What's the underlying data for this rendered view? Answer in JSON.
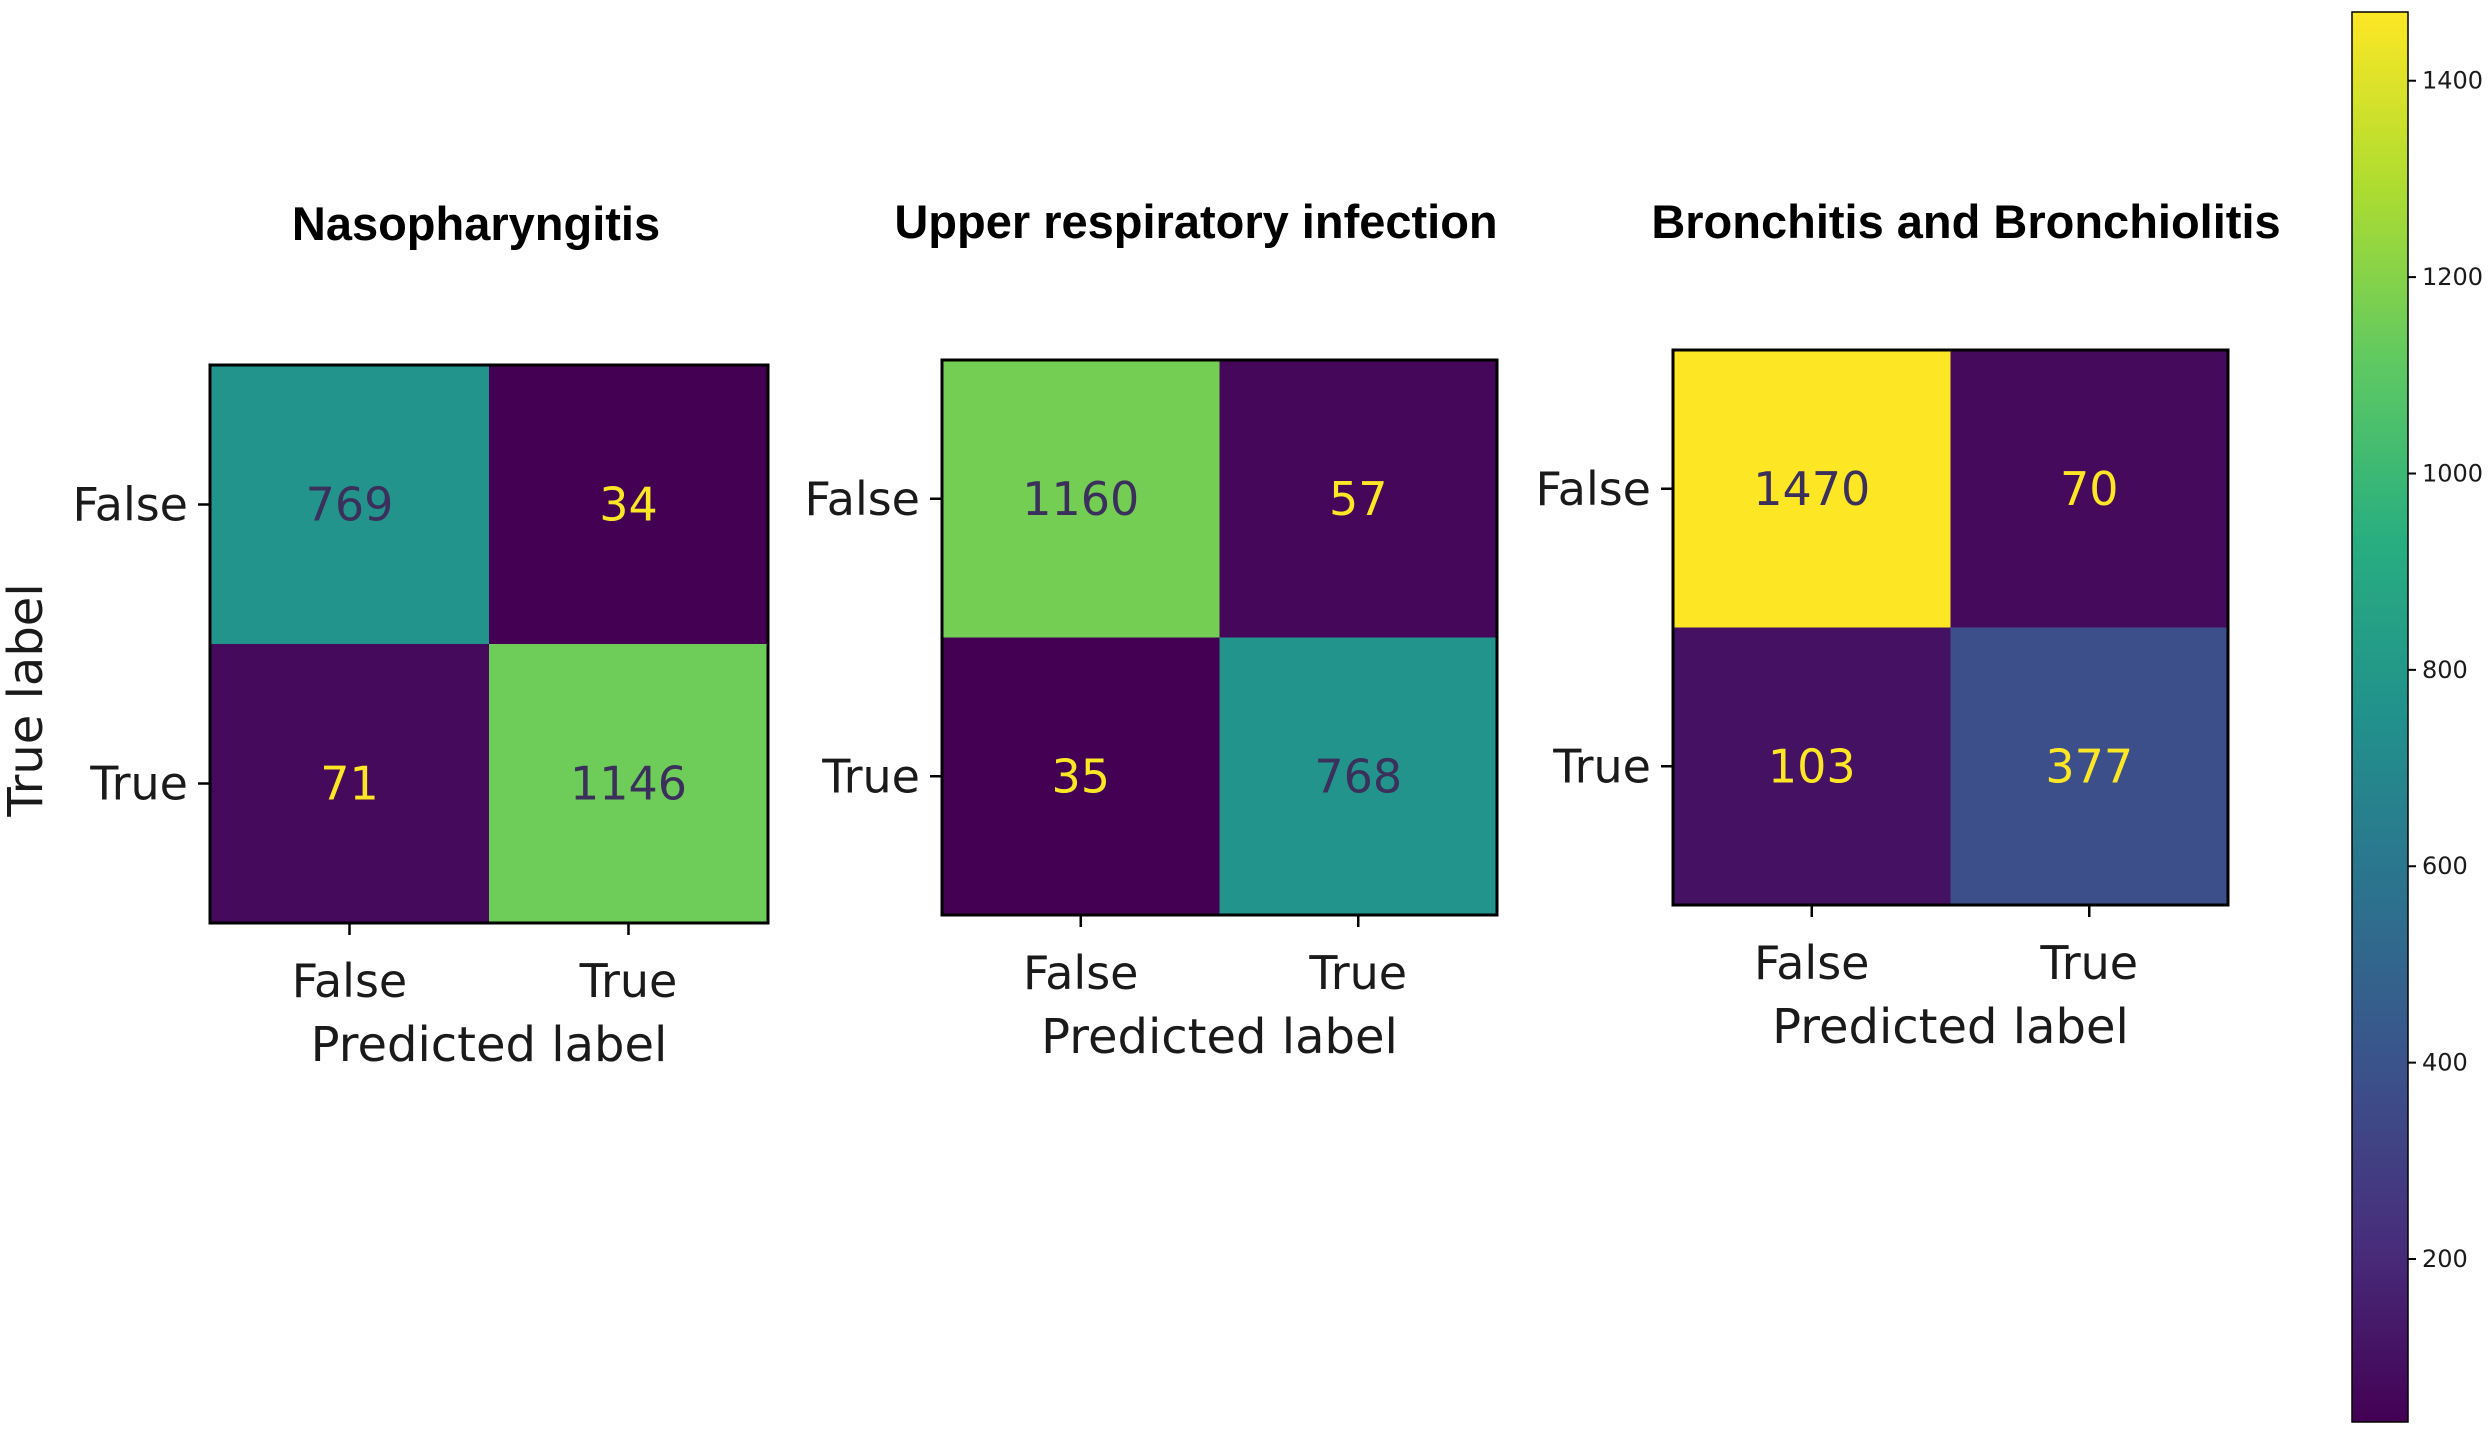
{
  "chart_data": [
    {
      "type": "heatmap",
      "title": "Nasopharyngitis",
      "xlabel": "Predicted label",
      "ylabel": "True label",
      "x_categories": [
        "False",
        "True"
      ],
      "y_categories": [
        "False",
        "True"
      ],
      "values": [
        [
          769,
          34
        ],
        [
          71,
          1146
        ]
      ]
    },
    {
      "type": "heatmap",
      "title": "Upper respiratory infection",
      "xlabel": "Predicted label",
      "ylabel": "",
      "x_categories": [
        "False",
        "True"
      ],
      "y_categories": [
        "False",
        "True"
      ],
      "values": [
        [
          1160,
          57
        ],
        [
          35,
          768
        ]
      ]
    },
    {
      "type": "heatmap",
      "title": "Bronchitis and Bronchiolitis",
      "xlabel": "Predicted label",
      "ylabel": "",
      "x_categories": [
        "False",
        "True"
      ],
      "y_categories": [
        "False",
        "True"
      ],
      "values": [
        [
          1470,
          70
        ],
        [
          103,
          377
        ]
      ]
    }
  ],
  "colorbar": {
    "colormap": "viridis",
    "range": [
      34,
      1470
    ],
    "ticks": [
      200,
      400,
      600,
      800,
      1000,
      1200,
      1400
    ],
    "tick_labels": [
      "200",
      "400",
      "600",
      "800",
      "1000",
      "1200",
      "1400"
    ]
  }
}
